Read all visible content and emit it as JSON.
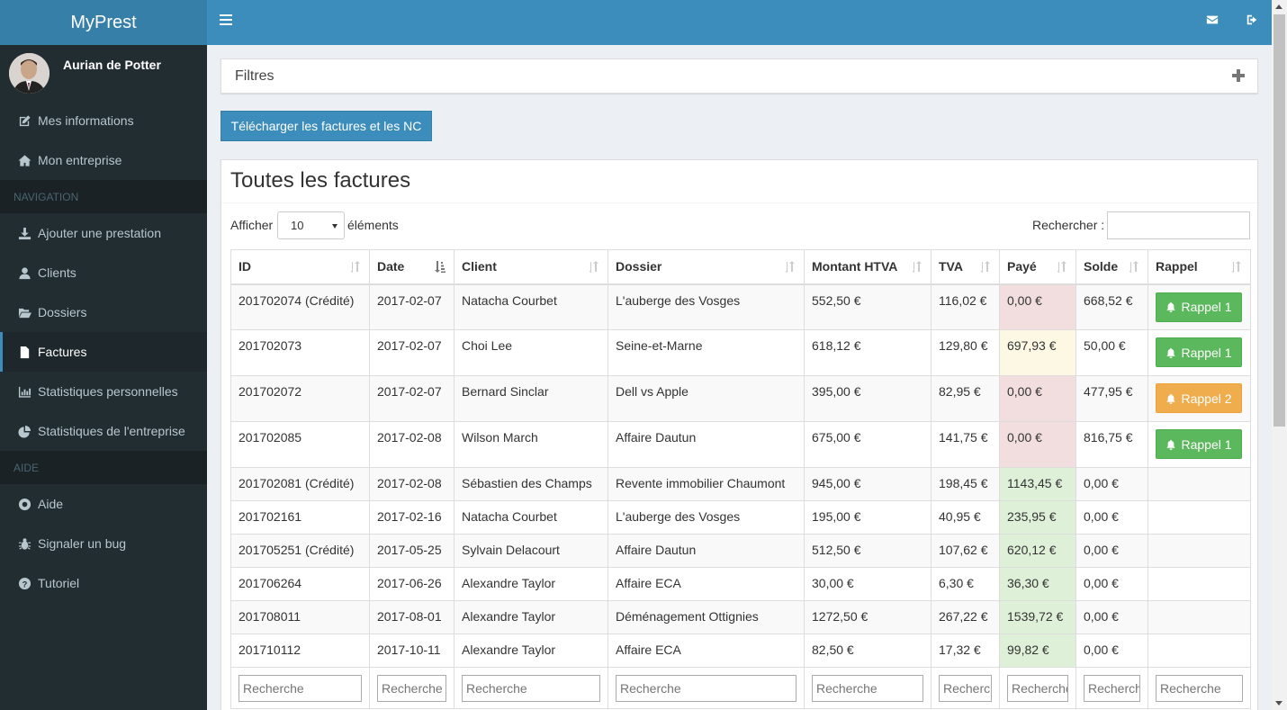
{
  "app": {
    "title": "MyPrest"
  },
  "user": {
    "name": "Aurian de Potter"
  },
  "sidebar": {
    "top_items": [
      {
        "label": "Mes informations",
        "icon": "edit-icon"
      },
      {
        "label": "Mon entreprise",
        "icon": "home-icon"
      }
    ],
    "nav_header": "NAVIGATION",
    "nav_items": [
      {
        "label": "Ajouter une prestation",
        "icon": "download-icon"
      },
      {
        "label": "Clients",
        "icon": "user-icon"
      },
      {
        "label": "Dossiers",
        "icon": "folder-open-icon"
      },
      {
        "label": "Factures",
        "icon": "file-icon",
        "active": true
      },
      {
        "label": "Statistiques personnelles",
        "icon": "bar-chart-icon"
      },
      {
        "label": "Statistiques de l'entreprise",
        "icon": "pie-chart-icon"
      }
    ],
    "help_header": "AIDE",
    "help_items": [
      {
        "label": "Aide",
        "icon": "life-ring-icon"
      },
      {
        "label": "Signaler un bug",
        "icon": "bug-icon"
      },
      {
        "label": "Tutoriel",
        "icon": "question-circle-icon"
      }
    ]
  },
  "topbar": {
    "icons": [
      "menu-icon",
      "envelope-icon",
      "sign-out-icon"
    ]
  },
  "filters": {
    "title": "Filtres"
  },
  "download_button": "Télécharger les factures et les NC",
  "invoices": {
    "title": "Toutes les factures",
    "show_label": "Afficher",
    "page_size": "10",
    "show_after": "éléments",
    "search_label": "Rechercher :",
    "columns": [
      "ID",
      "Date",
      "Client",
      "Dossier",
      "Montant HTVA",
      "TVA",
      "Payé",
      "Solde",
      "Rappel"
    ],
    "rows": [
      {
        "id": "201702074 (Crédité)",
        "date": "2017-02-07",
        "client": "Natacha Courbet",
        "dossier": "L'auberge des Vosges",
        "montant": "552,50 €",
        "tva": "116,02 €",
        "paye": "0,00 €",
        "solde": "668,52 €",
        "rappel": "Rappel 1",
        "status": "red",
        "rappel_color": "green"
      },
      {
        "id": "201702073",
        "date": "2017-02-07",
        "client": "Choi Lee",
        "dossier": "Seine-et-Marne",
        "montant": "618,12 €",
        "tva": "129,80 €",
        "paye": "697,93 €",
        "solde": "50,00 €",
        "rappel": "Rappel 1",
        "status": "yellow",
        "rappel_color": "green"
      },
      {
        "id": "201702072",
        "date": "2017-02-07",
        "client": "Bernard Sinclar",
        "dossier": "Dell vs Apple",
        "montant": "395,00 €",
        "tva": "82,95 €",
        "paye": "0,00 €",
        "solde": "477,95 €",
        "rappel": "Rappel 2",
        "status": "red",
        "rappel_color": "orange"
      },
      {
        "id": "201702085",
        "date": "2017-02-08",
        "client": "Wilson March",
        "dossier": "Affaire Dautun",
        "montant": "675,00 €",
        "tva": "141,75 €",
        "paye": "0,00 €",
        "solde": "816,75 €",
        "rappel": "Rappel 1",
        "status": "red",
        "rappel_color": "green"
      },
      {
        "id": "201702081 (Crédité)",
        "date": "2017-02-08",
        "client": "Sébastien des Champs",
        "dossier": "Revente immobilier Chaumont",
        "montant": "945,00 €",
        "tva": "198,45 €",
        "paye": "1143,45 €",
        "solde": "0,00 €",
        "rappel": "",
        "status": "green"
      },
      {
        "id": "201702161",
        "date": "2017-02-16",
        "client": "Natacha Courbet",
        "dossier": "L'auberge des Vosges",
        "montant": "195,00 €",
        "tva": "40,95 €",
        "paye": "235,95 €",
        "solde": "0,00 €",
        "rappel": "",
        "status": "green"
      },
      {
        "id": "201705251 (Crédité)",
        "date": "2017-05-25",
        "client": "Sylvain Delacourt",
        "dossier": "Affaire Dautun",
        "montant": "512,50 €",
        "tva": "107,62 €",
        "paye": "620,12 €",
        "solde": "0,00 €",
        "rappel": "",
        "status": "green"
      },
      {
        "id": "201706264",
        "date": "2017-06-26",
        "client": "Alexandre Taylor",
        "dossier": "Affaire ECA",
        "montant": "30,00 €",
        "tva": "6,30 €",
        "paye": "36,30 €",
        "solde": "0,00 €",
        "rappel": "",
        "status": "green"
      },
      {
        "id": "201708011",
        "date": "2017-08-01",
        "client": "Alexandre Taylor",
        "dossier": "Déménagement Ottignies",
        "montant": "1272,50 €",
        "tva": "267,22 €",
        "paye": "1539,72 €",
        "solde": "0,00 €",
        "rappel": "",
        "status": "green"
      },
      {
        "id": "201710112",
        "date": "2017-10-11",
        "client": "Alexandre Taylor",
        "dossier": "Affaire ECA",
        "montant": "82,50 €",
        "tva": "17,32 €",
        "paye": "99,82 €",
        "solde": "0,00 €",
        "rappel": "",
        "status": "green"
      }
    ],
    "search_placeholder": "Recherche"
  },
  "colors": {
    "brand": "#3c8dbc",
    "sidebar_bg": "#222d32",
    "paid_red": "#f2dede",
    "paid_yellow": "#fcf8e3",
    "paid_green": "#dff0d8",
    "reminder_green": "#5cb85c",
    "reminder_orange": "#f0ad4e"
  }
}
